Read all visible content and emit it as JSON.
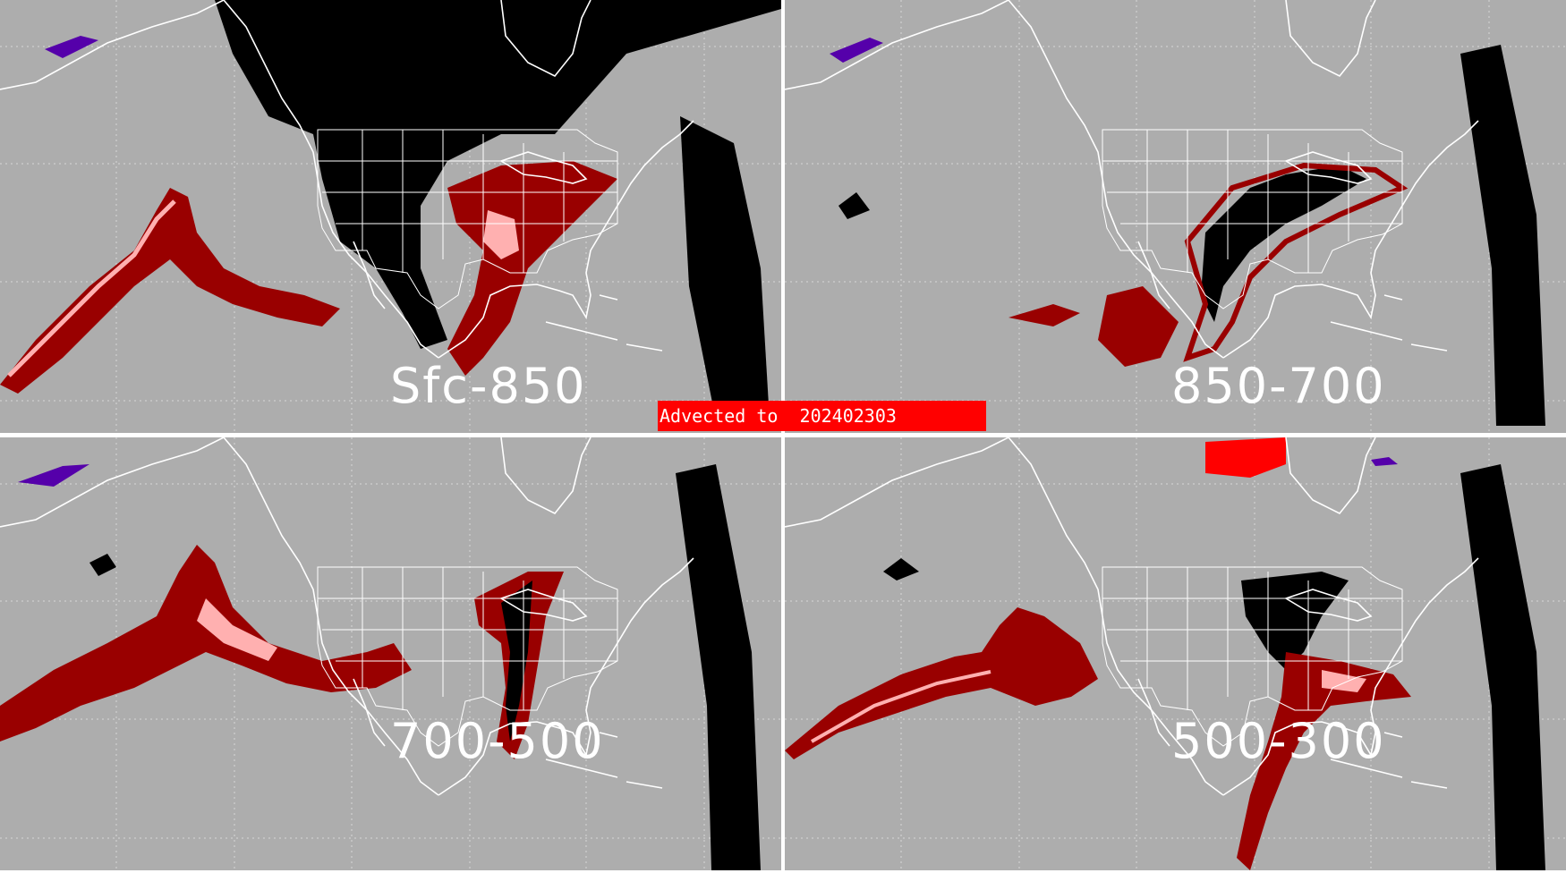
{
  "banner": {
    "text": "Advected to  202402303"
  },
  "panels": [
    {
      "label": "Sfc-850"
    },
    {
      "label": "850-700"
    },
    {
      "label": "700-500"
    },
    {
      "label": "500-300"
    }
  ],
  "colors": {
    "background": "#adadad",
    "mask": "#000000",
    "dark_red": "#990000",
    "pink": "#ffb0b0",
    "red": "#ff0000",
    "purple": "#5500aa",
    "lines": "#ffffff",
    "banner": "#ff0000"
  }
}
